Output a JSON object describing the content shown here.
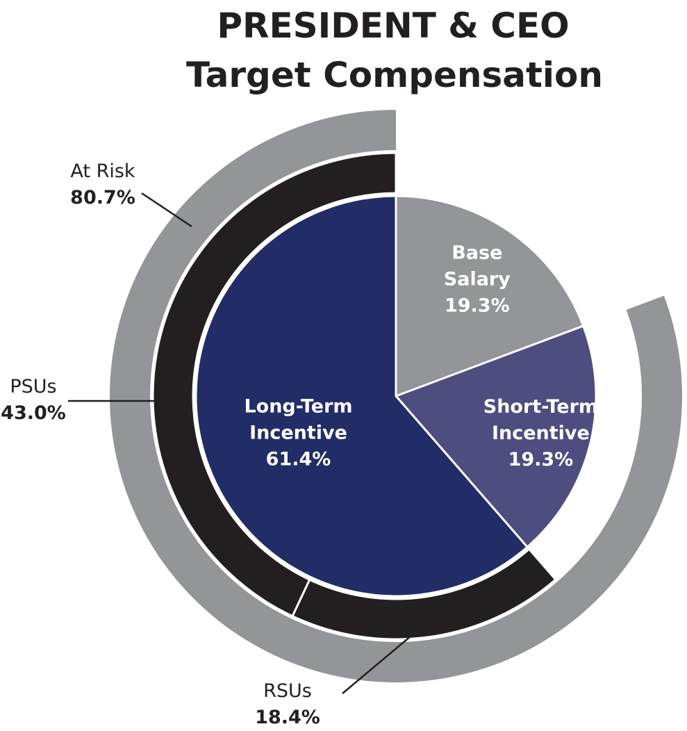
{
  "chart_data": {
    "type": "pie",
    "title_lines": [
      "PRESIDENT & CEO",
      "Target Compensation"
    ],
    "slices": [
      {
        "name_lines": [
          "Base",
          "Salary"
        ],
        "value": 19.3,
        "label": "19.3%",
        "color": "#939598"
      },
      {
        "name_lines": [
          "Short-Term",
          "Incentive"
        ],
        "value": 19.3,
        "label": "19.3%",
        "color": "#4e4d80"
      },
      {
        "name_lines": [
          "Long-Term",
          "Incentive"
        ],
        "value": 61.4,
        "label": "61.4%",
        "color": "#222d67"
      }
    ],
    "rings": {
      "vehicles": {
        "color": "#231f20",
        "segments": [
          {
            "name": "RSUs",
            "value": 18.4,
            "label": "18.4%"
          },
          {
            "name": "PSUs",
            "value": 43.0,
            "label": "43.0%"
          }
        ]
      },
      "at_risk": {
        "color": "#939598",
        "name": "At Risk",
        "value": 80.7,
        "label": "80.7%"
      }
    }
  }
}
